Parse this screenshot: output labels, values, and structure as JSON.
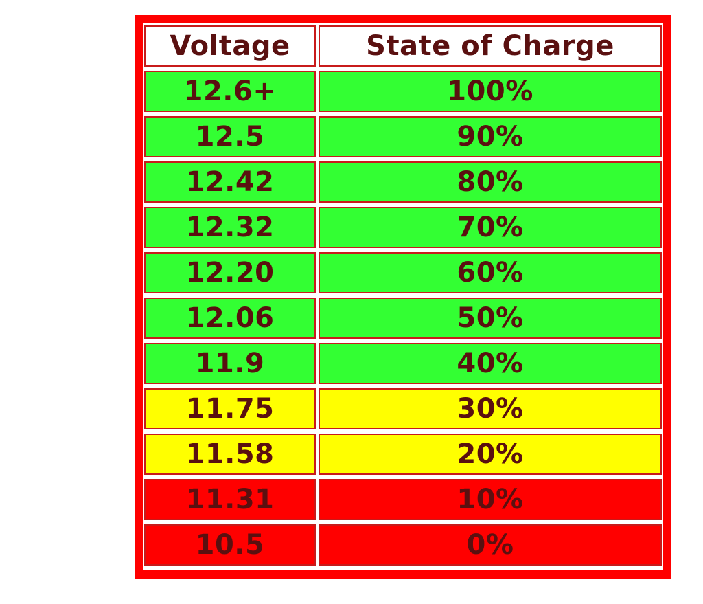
{
  "colors": {
    "frame": "#ff0000",
    "cell_border": "#c81b1b",
    "text": "#5a1010",
    "header_bg": "#ffffff",
    "green": "#33ff33",
    "yellow": "#ffff00",
    "red": "#ff0000"
  },
  "table": {
    "headers": [
      "Voltage",
      "State of Charge"
    ],
    "rows": [
      {
        "voltage": "12.6+",
        "charge": "100%",
        "status": "green"
      },
      {
        "voltage": "12.5",
        "charge": "90%",
        "status": "green"
      },
      {
        "voltage": "12.42",
        "charge": "80%",
        "status": "green"
      },
      {
        "voltage": "12.32",
        "charge": "70%",
        "status": "green"
      },
      {
        "voltage": "12.20",
        "charge": "60%",
        "status": "green"
      },
      {
        "voltage": "12.06",
        "charge": "50%",
        "status": "green"
      },
      {
        "voltage": "11.9",
        "charge": "40%",
        "status": "green"
      },
      {
        "voltage": "11.75",
        "charge": "30%",
        "status": "yellow"
      },
      {
        "voltage": "11.58",
        "charge": "20%",
        "status": "yellow"
      },
      {
        "voltage": "11.31",
        "charge": "10%",
        "status": "red"
      },
      {
        "voltage": "10.5",
        "charge": "0%",
        "status": "red"
      }
    ]
  }
}
